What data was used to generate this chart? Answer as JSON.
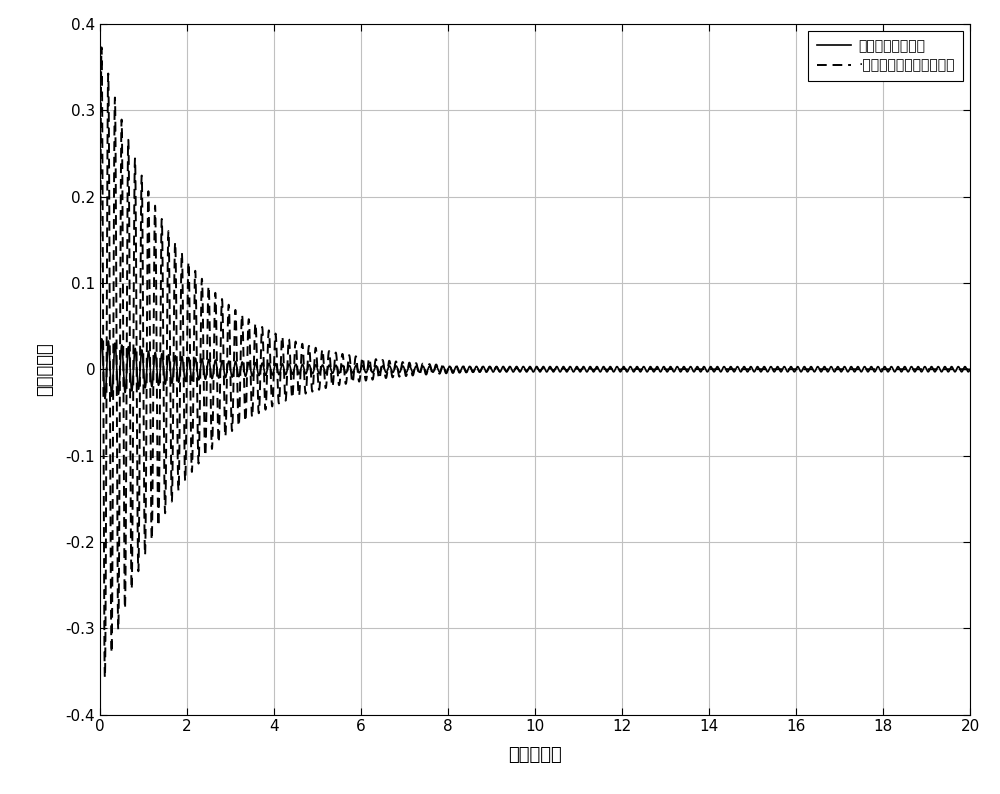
{
  "xlabel": "时间（秒）",
  "ylabel": "位移（米）",
  "xlim": [
    0,
    20
  ],
  "ylim": [
    -0.4,
    0.4
  ],
  "xticks": [
    0,
    2,
    4,
    6,
    8,
    10,
    12,
    14,
    16,
    18,
    20
  ],
  "yticks": [
    -0.4,
    -0.3,
    -0.2,
    -0.1,
    0.0,
    0.1,
    0.2,
    0.3,
    0.4
  ],
  "ytick_labels": [
    "-0.4",
    "-0.3",
    "-0.2",
    "-0.1",
    "0",
    "0.1",
    "0.2",
    "0.3",
    "0.4"
  ],
  "legend_solid": "无约束自适应控制",
  "legend_dashed": "·具有约束的故障补偿控制",
  "line1_color": "#000000",
  "line2_color": "#000000",
  "background_color": "#ffffff",
  "grid_color": "#c0c0c0",
  "figsize": [
    10.0,
    7.94
  ],
  "dpi": 100,
  "solid_freq": 6.5,
  "dashed_freq": 6.5,
  "xlabel_fontsize": 13,
  "ylabel_fontsize": 13,
  "tick_fontsize": 11,
  "legend_fontsize": 11
}
